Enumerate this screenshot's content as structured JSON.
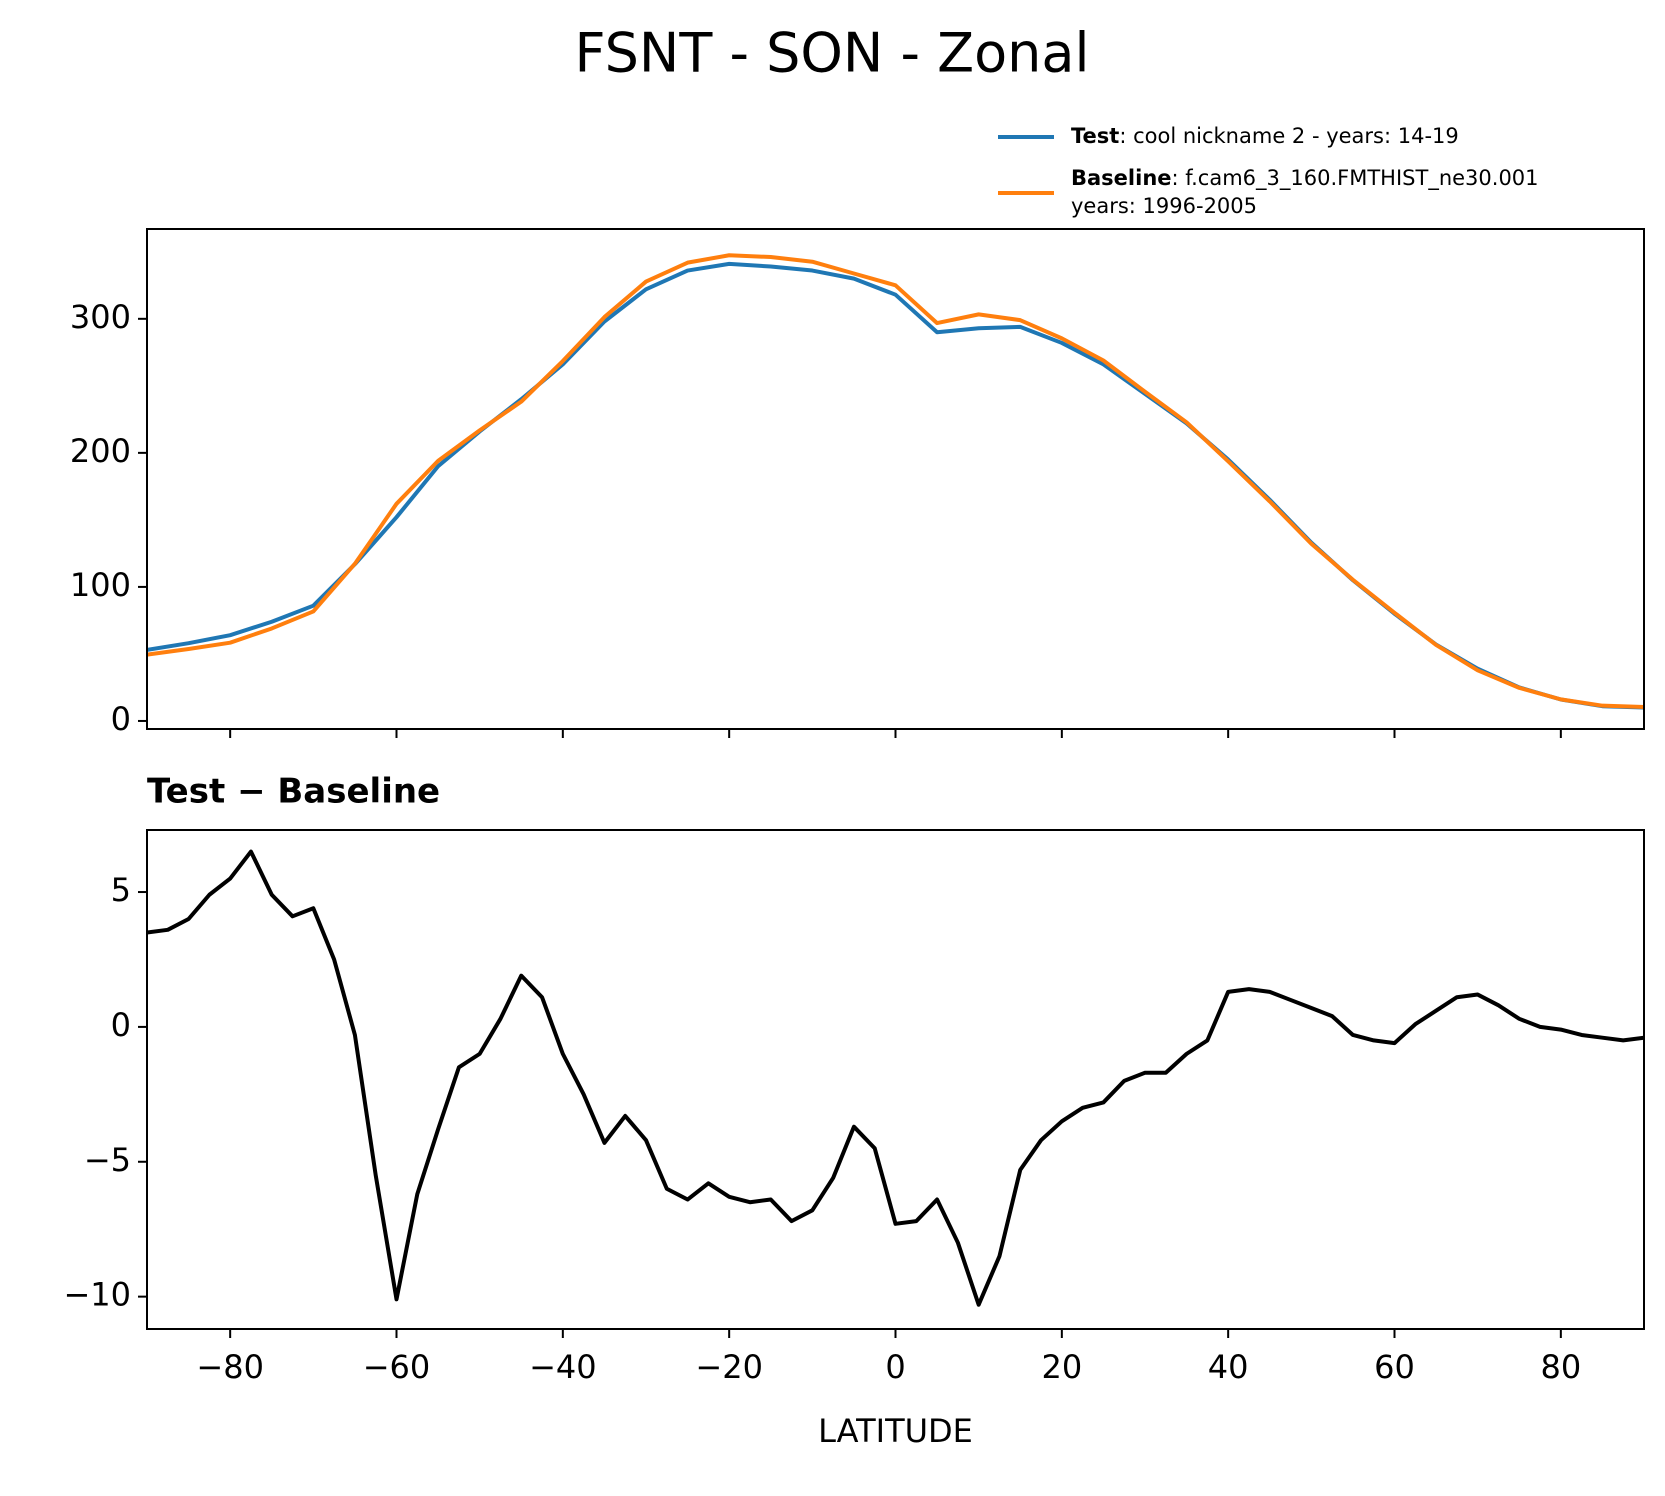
{
  "title": "FSNT - SON - Zonal",
  "chart_data": [
    {
      "type": "line",
      "x": [
        -90,
        -85,
        -80,
        -75,
        -70,
        -65,
        -60,
        -55,
        -50,
        -45,
        -40,
        -35,
        -30,
        -25,
        -20,
        -15,
        -10,
        -5,
        0,
        5,
        10,
        15,
        20,
        25,
        30,
        35,
        40,
        45,
        50,
        55,
        60,
        65,
        70,
        75,
        80,
        85,
        90
      ],
      "series": [
        {
          "name": "Test",
          "description": [
            ": cool nickname 2 - years: 14-19"
          ],
          "color": "#1f77b4",
          "values": [
            53,
            58,
            64,
            74,
            86,
            117,
            152,
            190,
            216,
            240,
            266,
            298,
            322,
            336,
            341,
            339,
            336,
            330,
            318,
            290,
            293,
            294,
            282,
            266,
            244,
            222,
            195,
            165,
            133,
            105,
            80,
            57,
            39,
            25,
            16,
            11,
            10
          ]
        },
        {
          "name": "Baseline",
          "description": [
            ": f.cam6_3_160.FMTHIST_ne30.001",
            "years: 1996-2005"
          ],
          "color": "#ff7f0e",
          "values": [
            49.5,
            53.7,
            58.4,
            69,
            81.7,
            117.3,
            162,
            194,
            216.8,
            238.2,
            268.5,
            301.3,
            327.8,
            341.9,
            347.4,
            346.1,
            342.6,
            333.8,
            325,
            296.8,
            303.3,
            299,
            285.4,
            268.9,
            245.6,
            222.8,
            193.7,
            163.8,
            132.2,
            105.3,
            80.7,
            56.7,
            37.8,
            24.7,
            16.1,
            11.4,
            10.4
          ]
        }
      ],
      "xlim": [
        -90,
        90
      ],
      "xticks": [
        -80,
        -60,
        -40,
        -20,
        0,
        20,
        40,
        60,
        80
      ],
      "ylim": [
        -6,
        367
      ],
      "yticks": [
        0,
        100,
        200,
        300
      ]
    },
    {
      "type": "line",
      "title": "Test − Baseline",
      "x": [
        -90,
        -87.5,
        -85,
        -82.5,
        -80,
        -77.5,
        -75,
        -72.5,
        -70,
        -67.5,
        -65,
        -62.5,
        -60,
        -57.5,
        -55,
        -52.5,
        -50,
        -47.5,
        -45,
        -42.5,
        -40,
        -37.5,
        -35,
        -32.5,
        -30,
        -27.5,
        -25,
        -22.5,
        -20,
        -17.5,
        -15,
        -12.5,
        -10,
        -7.5,
        -5,
        -2.5,
        0,
        2.5,
        5,
        7.5,
        10,
        12.5,
        15,
        17.5,
        20,
        22.5,
        25,
        27.5,
        30,
        32.5,
        35,
        37.5,
        40,
        42.5,
        45,
        47.5,
        50,
        52.5,
        55,
        57.5,
        60,
        62.5,
        65,
        67.5,
        70,
        72.5,
        75,
        77.5,
        80,
        82.5,
        85,
        87.5,
        90
      ],
      "values": [
        3.5,
        3.6,
        4.0,
        4.9,
        5.5,
        6.5,
        4.9,
        4.1,
        4.4,
        2.5,
        -0.3,
        -5.5,
        -10.1,
        -6.2,
        -3.8,
        -1.5,
        -1.0,
        0.3,
        1.9,
        1.1,
        -1.0,
        -2.5,
        -4.3,
        -3.3,
        -4.2,
        -6.0,
        -6.4,
        -5.8,
        -6.3,
        -6.5,
        -6.4,
        -7.2,
        -6.8,
        -5.6,
        -3.7,
        -4.5,
        -7.3,
        -7.2,
        -6.4,
        -8.0,
        -10.3,
        -8.5,
        -5.3,
        -4.2,
        -3.5,
        -3.0,
        -2.8,
        -2.0,
        -1.7,
        -1.7,
        -1.0,
        -0.5,
        1.3,
        1.4,
        1.3,
        1.0,
        0.7,
        0.4,
        -0.3,
        -0.5,
        -0.6,
        0.1,
        0.6,
        1.1,
        1.2,
        0.8,
        0.3,
        0.0,
        -0.1,
        -0.3,
        -0.4,
        -0.5,
        -0.4
      ],
      "color": "#000000",
      "xlim": [
        -90,
        90
      ],
      "xticks": [
        {
          "value": -80,
          "label": "−80"
        },
        {
          "value": -60,
          "label": "−60"
        },
        {
          "value": -40,
          "label": "−40"
        },
        {
          "value": -20,
          "label": "−20"
        },
        0,
        20,
        40,
        60,
        80
      ],
      "xlabel": "LATITUDE",
      "ylim": [
        -11.2,
        7.3
      ],
      "yticks": [
        {
          "value": -10,
          "label": "−10"
        },
        {
          "value": -5,
          "label": "−5"
        },
        0,
        5
      ]
    }
  ]
}
